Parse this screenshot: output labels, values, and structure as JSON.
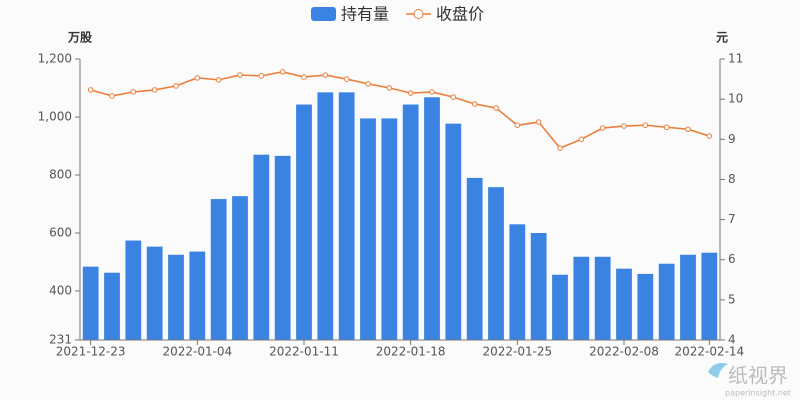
{
  "chart_data": {
    "type": "bar-line",
    "legend_position": "top",
    "grid": false,
    "y_axis_label": "万股",
    "y2_axis_label": "元",
    "categories": [
      "2021-12-23",
      null,
      null,
      null,
      null,
      "2022-01-04",
      null,
      null,
      null,
      null,
      "2022-01-11",
      null,
      null,
      null,
      null,
      "2022-01-18",
      null,
      null,
      null,
      null,
      "2022-01-25",
      null,
      null,
      null,
      null,
      "2022-02-08",
      null,
      null,
      null,
      "2022-02-14"
    ],
    "series": [
      {
        "name": "持有量",
        "type": "bar",
        "color": "#3a83e2",
        "values": [
          484,
          463,
          574,
          553,
          525,
          536,
          717,
          727,
          870,
          866,
          1043,
          1085,
          1085,
          995,
          995,
          1043,
          1068,
          977,
          790,
          758,
          630,
          600,
          456,
          518,
          518,
          477,
          459,
          494,
          525,
          532
        ]
      },
      {
        "name": "收盘价",
        "type": "line",
        "axis": "y2",
        "color": "#ec7f3c",
        "values": [
          10.23,
          10.08,
          10.18,
          10.23,
          10.33,
          10.53,
          10.48,
          10.6,
          10.58,
          10.68,
          10.55,
          10.6,
          10.5,
          10.38,
          10.28,
          10.15,
          10.18,
          10.05,
          9.88,
          9.78,
          9.35,
          9.43,
          8.78,
          9.0,
          9.28,
          9.33,
          9.35,
          9.3,
          9.25,
          9.08
        ]
      }
    ],
    "ylim": [
      231,
      1200
    ],
    "yticks": [
      231,
      400,
      600,
      800,
      {
        "value": 1000,
        "label": "1,000"
      },
      {
        "value": 1200,
        "label": "1,200"
      }
    ],
    "y2lim": [
      4,
      11
    ],
    "y2ticks": [
      4,
      5,
      6,
      7,
      8,
      9,
      10,
      11
    ],
    "watermark": {
      "title": "纸视界",
      "url": "paperinsight.net"
    }
  }
}
